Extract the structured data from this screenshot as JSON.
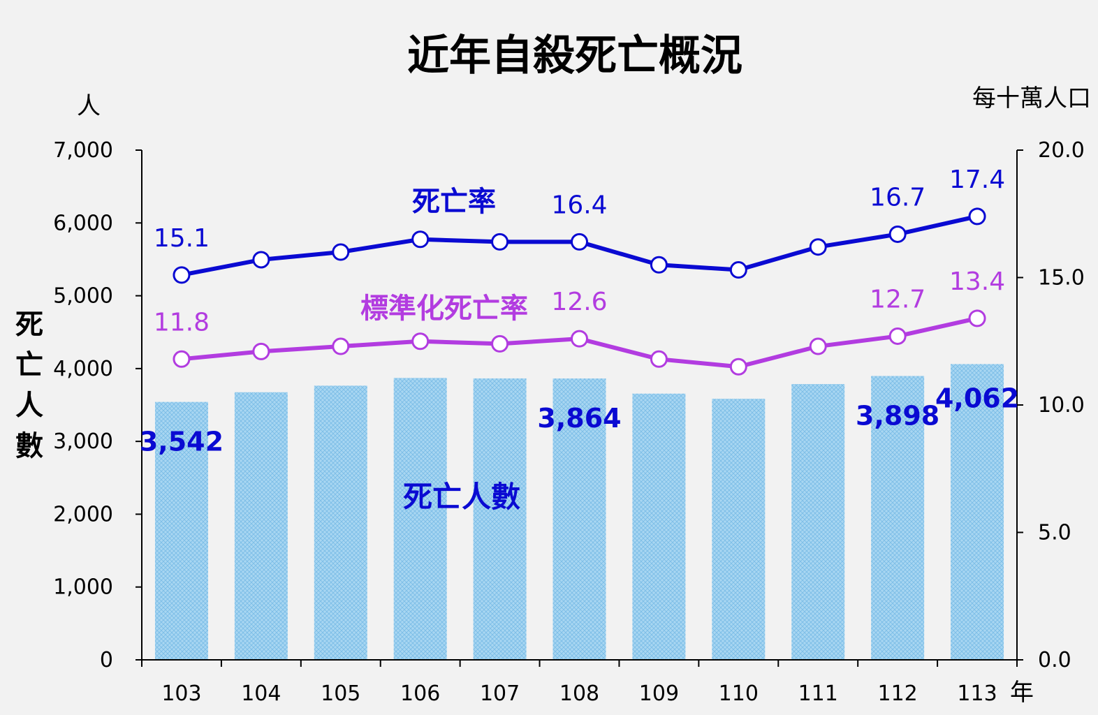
{
  "chart_data": {
    "type": "bar+line",
    "title": "近年自殺死亡概況",
    "categories": [
      "103",
      "104",
      "105",
      "106",
      "107",
      "108",
      "109",
      "110",
      "111",
      "112",
      "113"
    ],
    "x_unit": "年",
    "left_axis": {
      "unit": "人",
      "label": "死亡人數",
      "range": [
        0,
        7000
      ],
      "ticks": [
        "0",
        "1,000",
        "2,000",
        "3,000",
        "4,000",
        "5,000",
        "6,000",
        "7,000"
      ]
    },
    "right_axis": {
      "unit": "每十萬人口",
      "range": [
        0,
        20
      ],
      "ticks": [
        "0.0",
        "5.0",
        "10.0",
        "15.0",
        "20.0"
      ]
    },
    "bars": {
      "name": "死亡人數",
      "values": [
        3542,
        3675,
        3765,
        3871,
        3865,
        3864,
        3656,
        3585,
        3787,
        3898,
        4062
      ],
      "labels": [
        {
          "index": 0,
          "text": "3,542"
        },
        {
          "index": 5,
          "text": "3,864"
        },
        {
          "index": 9,
          "text": "3,898"
        },
        {
          "index": 10,
          "text": "4,062"
        }
      ],
      "color": "#9fd1f0"
    },
    "series": [
      {
        "name": "死亡率",
        "values": [
          15.1,
          15.7,
          16.0,
          16.5,
          16.4,
          16.4,
          15.5,
          15.3,
          16.2,
          16.7,
          17.4
        ],
        "labels": [
          {
            "index": 0,
            "text": "15.1"
          },
          {
            "index": 5,
            "text": "16.4"
          },
          {
            "index": 9,
            "text": "16.7"
          },
          {
            "index": 10,
            "text": "17.4"
          }
        ],
        "color": "#0a0ad2"
      },
      {
        "name": "標準化死亡率",
        "values": [
          11.8,
          12.1,
          12.3,
          12.5,
          12.4,
          12.6,
          11.8,
          11.5,
          12.3,
          12.7,
          13.4
        ],
        "labels": [
          {
            "index": 0,
            "text": "11.8"
          },
          {
            "index": 5,
            "text": "12.6"
          },
          {
            "index": 9,
            "text": "12.7"
          },
          {
            "index": 10,
            "text": "13.4"
          }
        ],
        "color": "#b23ce0"
      }
    ]
  }
}
